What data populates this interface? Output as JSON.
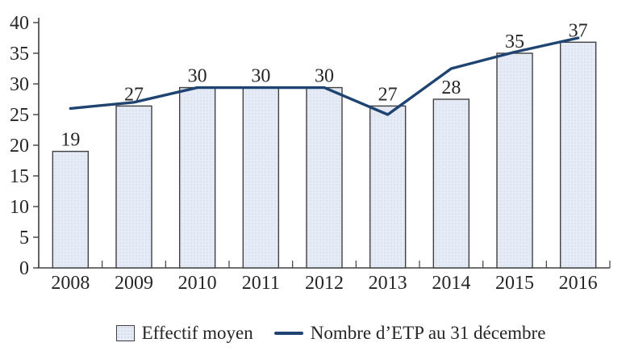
{
  "chart_data": {
    "type": "bar+line",
    "title": "",
    "xlabel": "",
    "ylabel": "",
    "categories": [
      "2008",
      "2009",
      "2010",
      "2011",
      "2012",
      "2013",
      "2014",
      "2015",
      "2016"
    ],
    "series": [
      {
        "name": "Effectif moyen",
        "type": "bar",
        "values": [
          19,
          27,
          30,
          30,
          30,
          27,
          28,
          35,
          37
        ],
        "drawn_values": [
          19,
          26.4,
          29.4,
          29.4,
          29.4,
          26.4,
          27.5,
          35,
          36.8
        ],
        "show_data_labels": true
      },
      {
        "name": "Nombre d’ETP au 31 décembre",
        "type": "line",
        "values": [
          26,
          27,
          29.4,
          29.4,
          29.4,
          25,
          32.5,
          35.2,
          37.5
        ],
        "show_data_labels": false
      }
    ],
    "ylim": [
      0,
      40
    ],
    "ytick_step": 5,
    "ytick_labels": [
      "0",
      "5",
      "10",
      "15",
      "20",
      "25",
      "30",
      "35",
      "40"
    ],
    "grid": false,
    "legend_position": "bottom"
  },
  "legend": {
    "items": [
      {
        "label": "Effectif moyen",
        "swatch": "bar"
      },
      {
        "label": "Nombre d’ETP au 31 décembre",
        "swatch": "line"
      }
    ]
  },
  "colors": {
    "background": "#ffffff",
    "bar_fill": "#e6ebf5",
    "bar_dot": "#cfd9ea",
    "bar_border": "#404040",
    "line": "#1f4472",
    "axis": "#404040",
    "text": "#262626"
  }
}
